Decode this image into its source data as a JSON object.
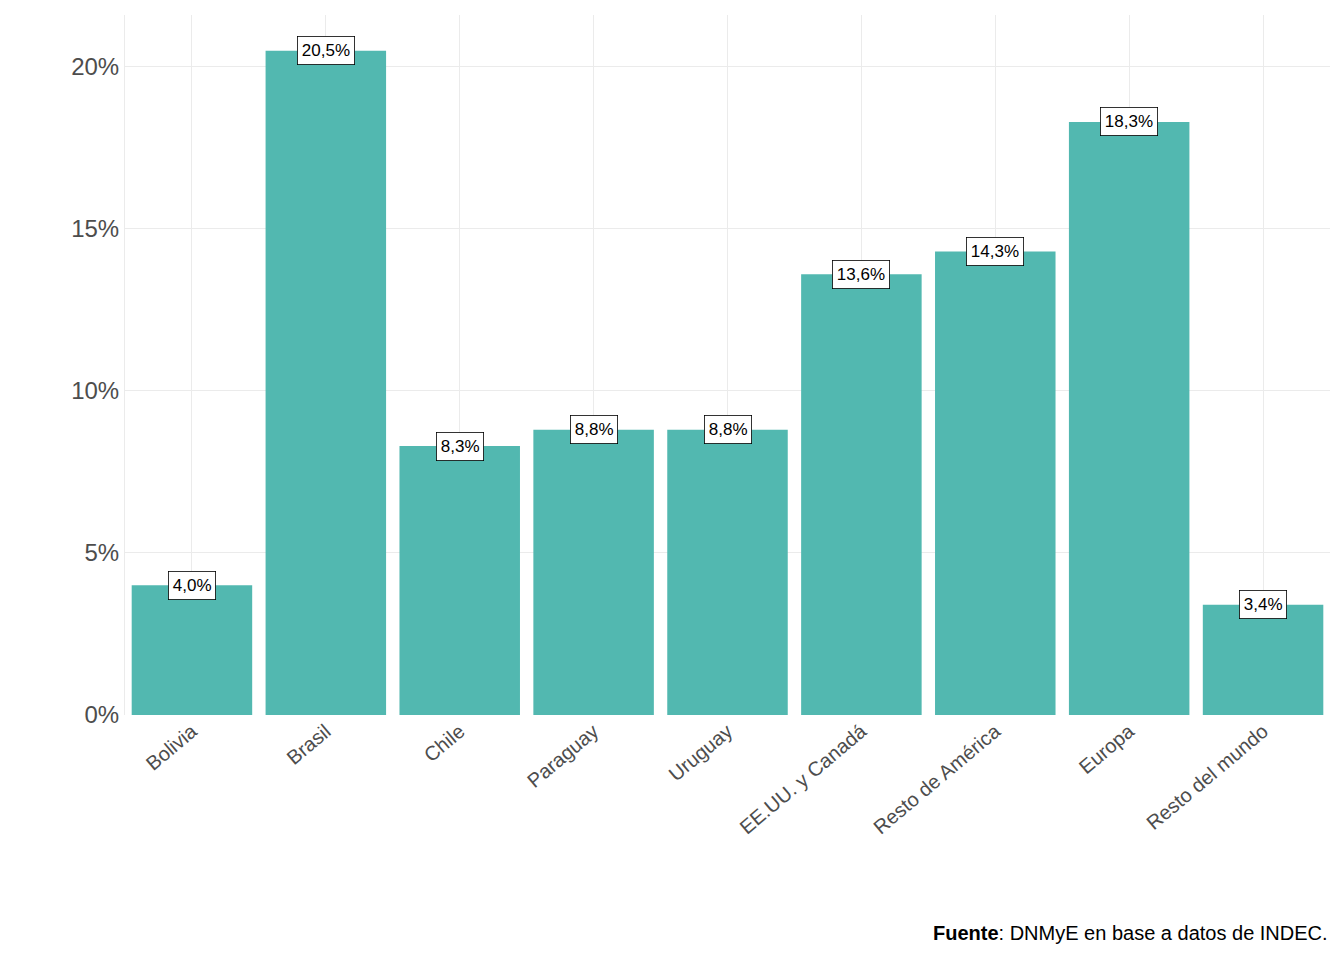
{
  "chart_data": {
    "type": "bar",
    "categories": [
      "Bolivia",
      "Brasil",
      "Chile",
      "Paraguay",
      "Uruguay",
      "EE.UU. y Canadá",
      "Resto de América",
      "Europa",
      "Resto del mundo"
    ],
    "values": [
      4.0,
      20.5,
      8.3,
      8.8,
      8.8,
      13.6,
      14.3,
      18.3,
      3.4
    ],
    "value_labels": [
      "4,0%",
      "20,5%",
      "8,3%",
      "8,8%",
      "8,8%",
      "13,6%",
      "14,3%",
      "18,3%",
      "3,4%"
    ],
    "color": "#52b8b0",
    "ylim": [
      0,
      21.6
    ],
    "yticks": [
      {
        "value": 0,
        "label": "0%"
      },
      {
        "value": 5,
        "label": "5%"
      },
      {
        "value": 10,
        "label": "10%"
      },
      {
        "value": 15,
        "label": "15%"
      },
      {
        "value": 20,
        "label": "20%"
      }
    ],
    "grid": true,
    "data_labels": true,
    "source": "Fuente: DNMyE en base a datos de INDEC."
  }
}
